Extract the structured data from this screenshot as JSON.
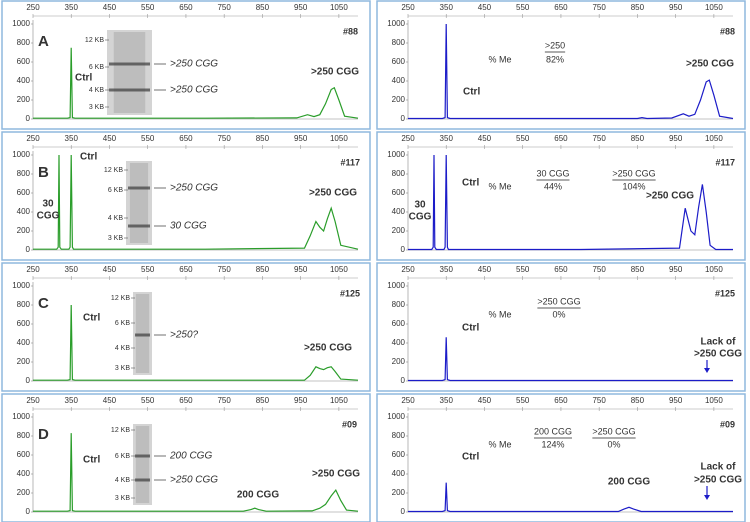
{
  "chart_data": [
    {
      "type": "line",
      "panel": "A",
      "sample": "#88",
      "color": "#2a9d2a",
      "x": [
        250,
        340,
        347,
        350,
        353,
        360,
        700,
        940,
        968,
        985,
        1000,
        1015,
        1030,
        1038,
        1050,
        1065,
        1100
      ],
      "values": [
        8,
        8,
        15,
        750,
        15,
        8,
        8,
        12,
        45,
        25,
        45,
        160,
        310,
        330,
        200,
        30,
        8
      ],
      "xlim": [
        250,
        1100
      ],
      "ylim": [
        0,
        1000
      ],
      "xticks": [
        250,
        350,
        450,
        550,
        650,
        750,
        850,
        950,
        1050
      ],
      "yticks": [
        0,
        200,
        400,
        600,
        800,
        1000
      ],
      "annotations": [
        "Ctrl",
        ">250 CGG"
      ],
      "gel": {
        "markers": [
          "12 KB",
          "6 KB",
          "4 KB",
          "3 KB"
        ],
        "bands": [
          ">250 CGG",
          ">250 CGG"
        ]
      }
    },
    {
      "type": "line",
      "sample": "#88",
      "color": "#1c1cc8",
      "x": [
        250,
        340,
        347,
        350,
        353,
        360,
        850,
        862,
        875,
        940,
        970,
        985,
        1000,
        1015,
        1030,
        1038,
        1050,
        1065,
        1100
      ],
      "values": [
        5,
        5,
        15,
        1000,
        15,
        5,
        5,
        15,
        5,
        10,
        55,
        30,
        50,
        200,
        390,
        410,
        250,
        30,
        5
      ],
      "xlim": [
        250,
        1100
      ],
      "ylim": [
        0,
        1000
      ],
      "xticks": [
        250,
        350,
        450,
        550,
        650,
        750,
        850,
        950,
        1050
      ],
      "yticks": [
        0,
        200,
        400,
        600,
        800,
        1000
      ],
      "annotations": [
        "Ctrl",
        ">250 CGG"
      ],
      "methylation": {
        "label": "% Me",
        "columns": [
          {
            "header": ">250",
            "value": "82%"
          }
        ]
      }
    },
    {
      "type": "line",
      "panel": "B",
      "sample": "#117",
      "color": "#2a9d2a",
      "x": [
        250,
        312,
        316,
        318,
        320,
        324,
        344,
        347,
        350,
        353,
        356,
        700,
        960,
        975,
        990,
        1000,
        1010,
        1020,
        1030,
        1040,
        1055,
        1100
      ],
      "values": [
        8,
        8,
        30,
        1000,
        30,
        8,
        8,
        30,
        1000,
        30,
        8,
        8,
        20,
        150,
        300,
        240,
        200,
        330,
        440,
        300,
        50,
        8
      ],
      "xlim": [
        250,
        1100
      ],
      "ylim": [
        0,
        1000
      ],
      "xticks": [
        250,
        350,
        450,
        550,
        650,
        750,
        850,
        950,
        1050
      ],
      "yticks": [
        0,
        200,
        400,
        600,
        800,
        1000
      ],
      "annotations": [
        "30",
        "CGG",
        "Ctrl",
        ">250 CGG"
      ],
      "gel": {
        "markers": [
          "12 KB",
          "6 KB",
          "4 KB",
          "3 KB"
        ],
        "bands": [
          ">250 CGG",
          "30 CGG"
        ]
      }
    },
    {
      "type": "line",
      "sample": "#117",
      "color": "#1c1cc8",
      "x": [
        250,
        312,
        316,
        318,
        320,
        324,
        344,
        347,
        350,
        353,
        356,
        700,
        960,
        975,
        990,
        1000,
        1010,
        1020,
        1030,
        1040,
        1055,
        1100
      ],
      "values": [
        5,
        5,
        30,
        1000,
        30,
        5,
        5,
        30,
        1000,
        30,
        5,
        5,
        20,
        440,
        200,
        160,
        450,
        690,
        400,
        50,
        5,
        5
      ],
      "xlim": [
        250,
        1100
      ],
      "ylim": [
        0,
        1000
      ],
      "xticks": [
        250,
        350,
        450,
        550,
        650,
        750,
        850,
        950,
        1050
      ],
      "yticks": [
        0,
        200,
        400,
        600,
        800,
        1000
      ],
      "annotations": [
        "30",
        "CGG",
        "Ctrl",
        ">250 CGG"
      ],
      "methylation": {
        "label": "% Me",
        "columns": [
          {
            "header": "30 CGG",
            "value": "44%"
          },
          {
            "header": ">250 CGG",
            "value": "104%"
          }
        ]
      }
    },
    {
      "type": "line",
      "panel": "C",
      "sample": "#125",
      "color": "#2a9d2a",
      "x": [
        250,
        340,
        347,
        350,
        353,
        360,
        960,
        975,
        990,
        1000,
        1010,
        1020,
        1030,
        1040,
        1055,
        1100
      ],
      "values": [
        8,
        8,
        15,
        800,
        15,
        8,
        8,
        60,
        150,
        130,
        120,
        140,
        150,
        100,
        20,
        8
      ],
      "xlim": [
        250,
        1100
      ],
      "ylim": [
        0,
        1000
      ],
      "xticks": [
        250,
        350,
        450,
        550,
        650,
        750,
        850,
        950,
        1050
      ],
      "yticks": [
        0,
        200,
        400,
        600,
        800,
        1000
      ],
      "annotations": [
        "Ctrl",
        ">250 CGG"
      ],
      "gel": {
        "markers": [
          "12 KB",
          "6 KB",
          "4 KB",
          "3 KB"
        ],
        "bands": [
          ">250?"
        ]
      }
    },
    {
      "type": "line",
      "sample": "#125",
      "color": "#1c1cc8",
      "x": [
        250,
        340,
        347,
        350,
        353,
        360,
        1100
      ],
      "values": [
        5,
        5,
        15,
        460,
        15,
        5,
        5
      ],
      "xlim": [
        250,
        1100
      ],
      "ylim": [
        0,
        1000
      ],
      "xticks": [
        250,
        350,
        450,
        550,
        650,
        750,
        850,
        950,
        1050
      ],
      "yticks": [
        0,
        200,
        400,
        600,
        800,
        1000
      ],
      "annotations": [
        "Ctrl",
        "Lack of",
        ">250 CGG"
      ],
      "methylation": {
        "label": "% Me",
        "columns": [
          {
            "header": ">250 CGG",
            "value": "0%"
          }
        ]
      }
    },
    {
      "type": "line",
      "panel": "D",
      "sample": "#09",
      "color": "#2a9d2a",
      "x": [
        250,
        340,
        347,
        350,
        353,
        360,
        800,
        820,
        830,
        840,
        860,
        980,
        1000,
        1015,
        1030,
        1042,
        1055,
        1070,
        1100
      ],
      "values": [
        8,
        8,
        15,
        830,
        15,
        8,
        8,
        25,
        40,
        25,
        8,
        12,
        40,
        80,
        170,
        230,
        120,
        20,
        8
      ],
      "xlim": [
        250,
        1100
      ],
      "ylim": [
        0,
        1000
      ],
      "xticks": [
        250,
        350,
        450,
        550,
        650,
        750,
        850,
        950,
        1050
      ],
      "yticks": [
        0,
        200,
        400,
        600,
        800,
        1000
      ],
      "annotations": [
        "Ctrl",
        ">250 CGG",
        "200 CGG"
      ],
      "gel": {
        "markers": [
          "12 KB",
          "6 KB",
          "4 KB",
          "3 KB"
        ],
        "bands": [
          "200 CGG",
          ">250 CGG"
        ]
      }
    },
    {
      "type": "line",
      "sample": "#09",
      "color": "#1c1cc8",
      "x": [
        250,
        340,
        347,
        350,
        353,
        360,
        800,
        815,
        828,
        840,
        860,
        1100
      ],
      "values": [
        5,
        5,
        15,
        310,
        15,
        5,
        5,
        30,
        50,
        30,
        5,
        5
      ],
      "xlim": [
        250,
        1100
      ],
      "ylim": [
        0,
        1000
      ],
      "xticks": [
        250,
        350,
        450,
        550,
        650,
        750,
        850,
        950,
        1050
      ],
      "yticks": [
        0,
        200,
        400,
        600,
        800,
        1000
      ],
      "annotations": [
        "Ctrl",
        "200 CGG",
        "Lack of",
        ">250 CGG"
      ],
      "methylation": {
        "label": "% Me",
        "columns": [
          {
            "header": "200 CGG",
            "value": "124%"
          },
          {
            "header": ">250 CGG",
            "value": "0%"
          }
        ]
      }
    }
  ]
}
